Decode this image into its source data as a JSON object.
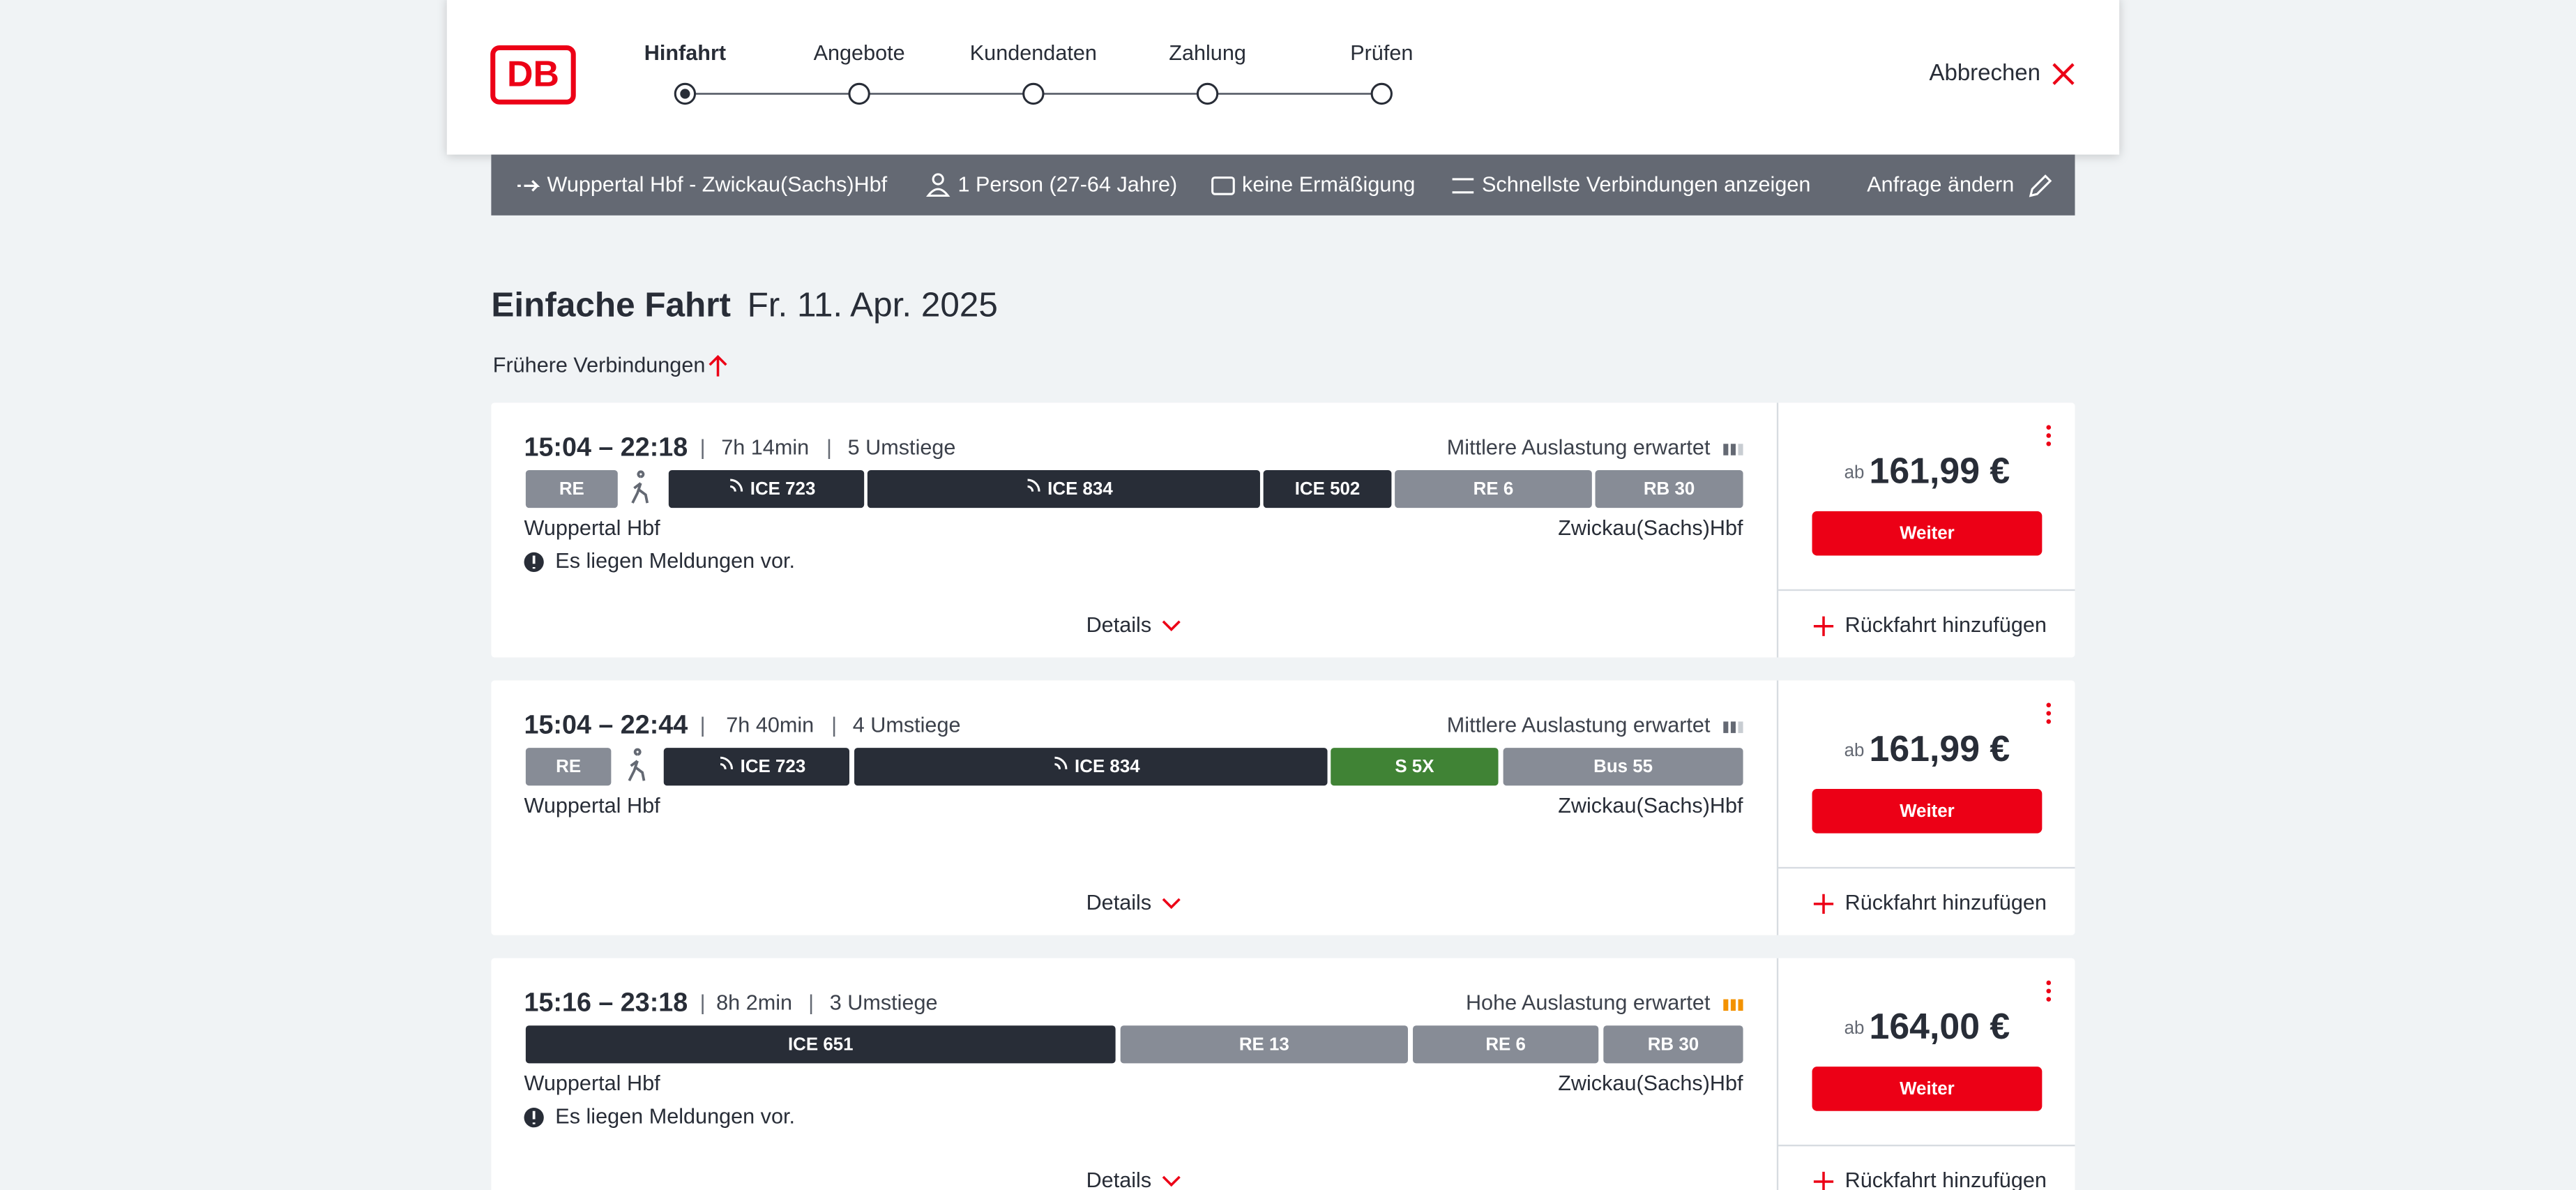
{
  "header": {
    "logo": "DB",
    "steps": [
      "Hinfahrt",
      "Angebote",
      "Kundendaten",
      "Zahlung",
      "Prüfen"
    ],
    "cancel": "Abbrechen"
  },
  "search_bar": {
    "route": "Wuppertal Hbf - Zwickau(Sachs)Hbf",
    "passengers": "1 Person (27-64 Jahre)",
    "discount": "keine Ermäßigung",
    "option": "Schnellste Verbindungen anzeigen",
    "edit": "Anfrage ändern"
  },
  "heading": {
    "title": "Einfache Fahrt",
    "date": "Fr. 11. Apr. 2025"
  },
  "earlier": "Frühere Verbindungen",
  "connections": [
    {
      "times": "15:04 – 22:18",
      "duration": "7h 14min",
      "transfers": "5 Umstiege",
      "occupancy": "Mittlere Auslastung erwartet",
      "segments": [
        "RE",
        "ICE 723",
        "ICE 834",
        "ICE 502",
        "RE 6",
        "RB 30"
      ],
      "from": "Wuppertal Hbf",
      "to": "Zwickau(Sachs)Hbf",
      "notice": "Es liegen Meldungen vor.",
      "details": "Details",
      "price_prefix": "ab",
      "price": "161,99 €",
      "button": "Weiter",
      "return": "Rückfahrt hinzufügen"
    },
    {
      "times": "15:04 – 22:44",
      "duration": "7h 40min",
      "transfers": "4 Umstiege",
      "occupancy": "Mittlere Auslastung erwartet",
      "segments": [
        "RE",
        "ICE 723",
        "ICE 834",
        "S 5X",
        "Bus 55"
      ],
      "from": "Wuppertal Hbf",
      "to": "Zwickau(Sachs)Hbf",
      "details": "Details",
      "price_prefix": "ab",
      "price": "161,99 €",
      "button": "Weiter",
      "return": "Rückfahrt hinzufügen"
    },
    {
      "times": "15:16 – 23:18",
      "duration": "8h 2min",
      "transfers": "3 Umstiege",
      "occupancy": "Hohe Auslastung erwartet",
      "segments": [
        "ICE 651",
        "RE 13",
        "RE 6",
        "RB 30"
      ],
      "from": "Wuppertal Hbf",
      "to": "Zwickau(Sachs)Hbf",
      "notice": "Es liegen Meldungen vor.",
      "details": "Details",
      "price_prefix": "ab",
      "price": "164,00 €",
      "button": "Weiter",
      "return": "Rückfahrt hinzufügen"
    }
  ]
}
